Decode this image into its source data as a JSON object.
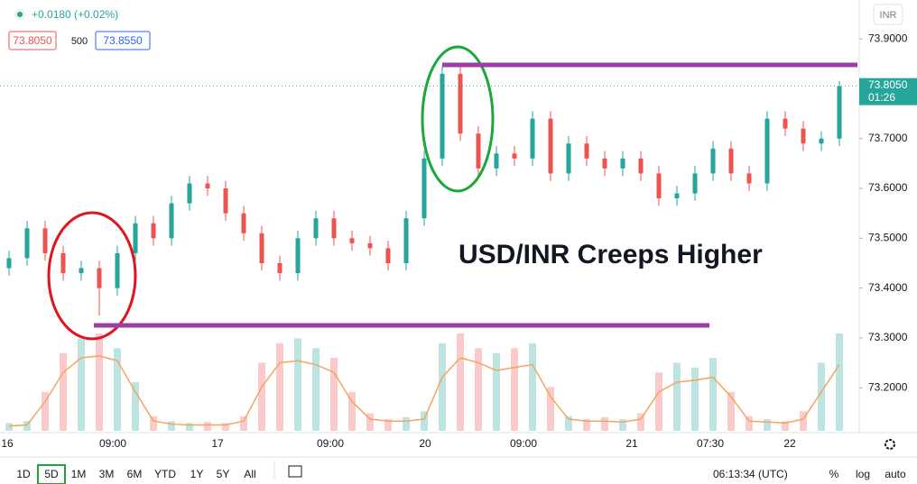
{
  "header": {
    "change": "+0.0180 (+0.02%)",
    "bid": "73.8050",
    "spread": "500",
    "ask": "73.8550",
    "currency": "INR"
  },
  "annotation": "USD/INR Creeps Higher",
  "last_price": {
    "price": "73.8050",
    "countdown": "01:26"
  },
  "chart_data": {
    "type": "candlestick",
    "candles": [
      [
        73.44,
        73.475,
        73.425,
        73.46
      ],
      [
        73.46,
        73.535,
        73.445,
        73.52
      ],
      [
        73.52,
        73.535,
        73.455,
        73.47
      ],
      [
        73.47,
        73.485,
        73.415,
        73.43
      ],
      [
        73.43,
        73.455,
        73.415,
        73.44
      ],
      [
        73.44,
        73.455,
        73.345,
        73.4
      ],
      [
        73.4,
        73.485,
        73.385,
        73.47
      ],
      [
        73.47,
        73.545,
        73.455,
        73.53
      ],
      [
        73.53,
        73.545,
        73.485,
        73.5
      ],
      [
        73.5,
        73.585,
        73.485,
        73.57
      ],
      [
        73.57,
        73.625,
        73.555,
        73.61
      ],
      [
        73.61,
        73.625,
        73.585,
        73.6
      ],
      [
        73.6,
        73.615,
        73.535,
        73.55
      ],
      [
        73.55,
        73.565,
        73.495,
        73.51
      ],
      [
        73.51,
        73.525,
        73.435,
        73.45
      ],
      [
        73.45,
        73.465,
        73.415,
        73.43
      ],
      [
        73.43,
        73.515,
        73.415,
        73.5
      ],
      [
        73.5,
        73.555,
        73.485,
        73.54
      ],
      [
        73.54,
        73.555,
        73.485,
        73.5
      ],
      [
        73.5,
        73.515,
        73.475,
        73.49
      ],
      [
        73.49,
        73.505,
        73.465,
        73.48
      ],
      [
        73.48,
        73.495,
        73.435,
        73.45
      ],
      [
        73.45,
        73.555,
        73.435,
        73.54
      ],
      [
        73.54,
        73.675,
        73.525,
        73.66
      ],
      [
        73.66,
        73.845,
        73.645,
        73.83
      ],
      [
        73.83,
        73.845,
        73.695,
        73.71
      ],
      [
        73.71,
        73.725,
        73.625,
        73.64
      ],
      [
        73.64,
        73.685,
        73.625,
        73.67
      ],
      [
        73.67,
        73.685,
        73.645,
        73.66
      ],
      [
        73.66,
        73.755,
        73.645,
        73.74
      ],
      [
        73.74,
        73.755,
        73.615,
        73.63
      ],
      [
        73.63,
        73.705,
        73.615,
        73.69
      ],
      [
        73.69,
        73.705,
        73.645,
        73.66
      ],
      [
        73.66,
        73.675,
        73.625,
        73.64
      ],
      [
        73.64,
        73.675,
        73.625,
        73.66
      ],
      [
        73.66,
        73.675,
        73.615,
        73.63
      ],
      [
        73.63,
        73.645,
        73.565,
        73.58
      ],
      [
        73.58,
        73.605,
        73.565,
        73.59
      ],
      [
        73.59,
        73.645,
        73.575,
        73.63
      ],
      [
        73.63,
        73.695,
        73.615,
        73.68
      ],
      [
        73.68,
        73.695,
        73.615,
        73.63
      ],
      [
        73.63,
        73.645,
        73.595,
        73.61
      ],
      [
        73.61,
        73.755,
        73.595,
        73.74
      ],
      [
        73.74,
        73.755,
        73.705,
        73.72
      ],
      [
        73.72,
        73.735,
        73.675,
        73.69
      ],
      [
        73.69,
        73.715,
        73.675,
        73.7
      ],
      [
        73.7,
        73.815,
        73.685,
        73.805
      ]
    ],
    "volume": [
      8,
      10,
      40,
      80,
      95,
      100,
      85,
      50,
      15,
      10,
      8,
      9,
      8,
      15,
      70,
      90,
      95,
      85,
      75,
      40,
      18,
      12,
      14,
      20,
      90,
      100,
      85,
      80,
      85,
      90,
      45,
      15,
      12,
      14,
      12,
      18,
      60,
      70,
      65,
      75,
      40,
      15,
      12,
      10,
      20,
      70,
      100
    ],
    "volume_ma": [
      5,
      6,
      30,
      60,
      75,
      77,
      72,
      40,
      10,
      7,
      6,
      6,
      6,
      10,
      45,
      70,
      72,
      68,
      60,
      30,
      12,
      10,
      10,
      12,
      55,
      75,
      70,
      62,
      65,
      68,
      35,
      12,
      10,
      10,
      9,
      12,
      40,
      50,
      52,
      55,
      35,
      10,
      9,
      8,
      12,
      40,
      68
    ],
    "vlim": [
      0,
      100
    ],
    "up_color": "#26a69a",
    "down_color": "#ef5350",
    "ma_color": "#f4a460",
    "ylim": [
      73.11,
      73.978
    ],
    "yticks": [
      {
        "value": 73.9,
        "label": "73.9000"
      },
      {
        "value": 73.8,
        "label": "73.8000"
      },
      {
        "value": 73.7,
        "label": "73.7000"
      },
      {
        "value": 73.6,
        "label": "73.6000"
      },
      {
        "value": 73.5,
        "label": "73.5000"
      },
      {
        "value": 73.4,
        "label": "73.4000"
      },
      {
        "value": 73.3,
        "label": "73.3000"
      },
      {
        "value": 73.2,
        "label": "73.2000"
      }
    ],
    "xlabels": [
      "16",
      "09:00",
      "17",
      "09:00",
      "20",
      "09:00",
      "21",
      "07:30",
      "22"
    ],
    "last_value": 73.805
  },
  "toolbar": {
    "timeframes": [
      "1D",
      "5D",
      "1M",
      "3M",
      "6M",
      "YTD",
      "1Y",
      "5Y",
      "All"
    ],
    "clock": "06:13:34 (UTC)",
    "options": [
      "%",
      "log",
      "auto"
    ]
  }
}
